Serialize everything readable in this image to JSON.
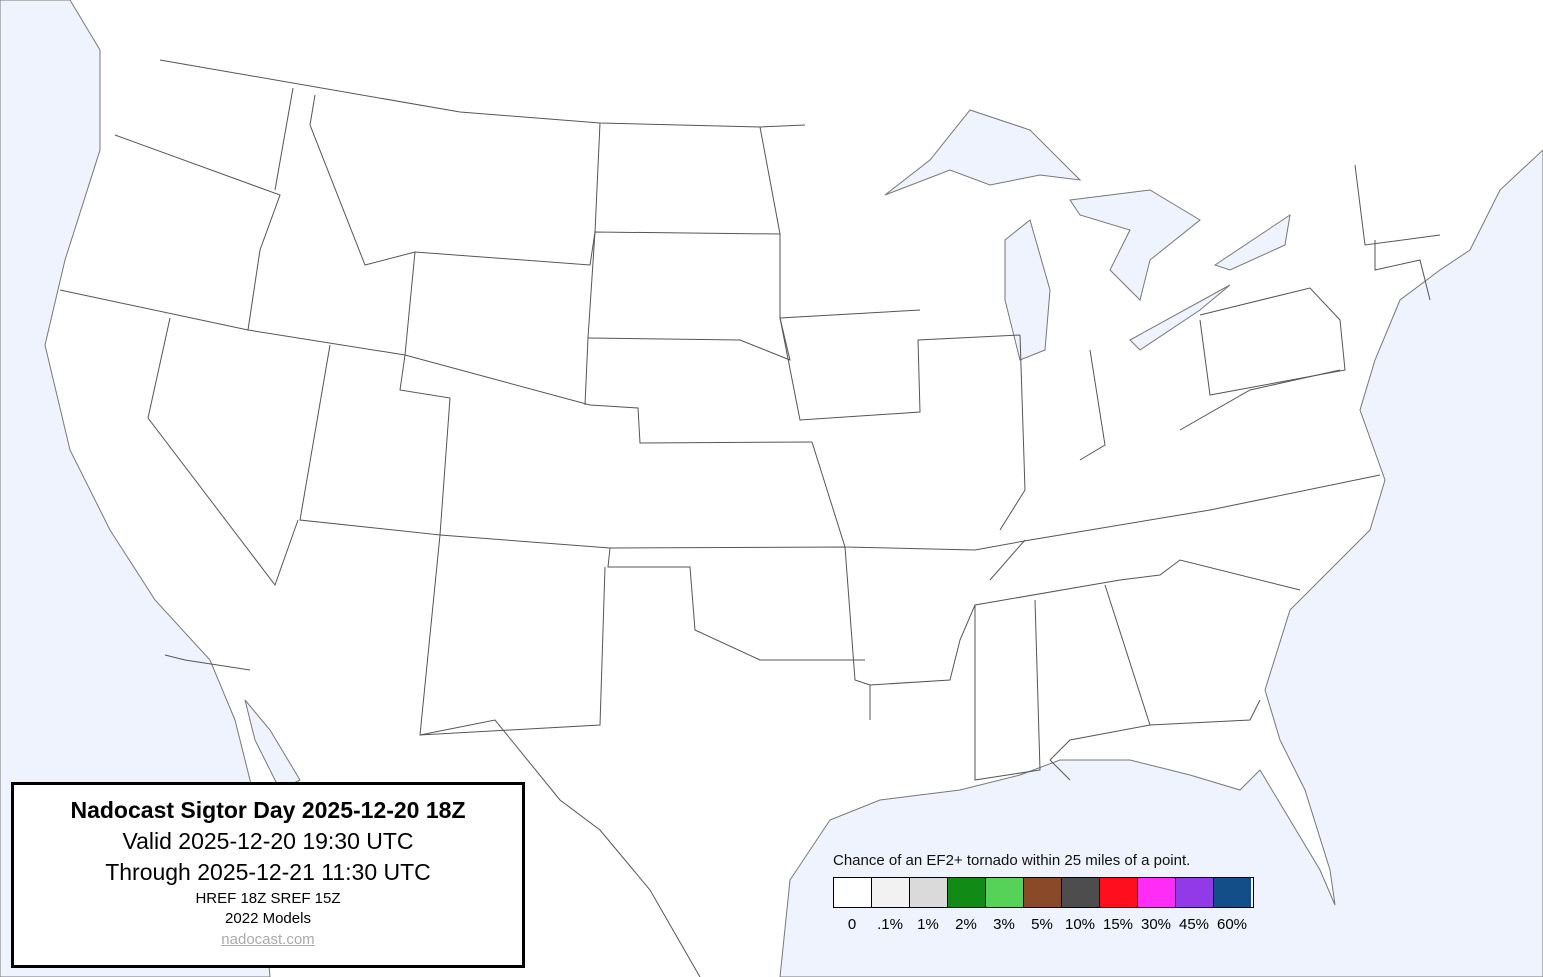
{
  "title_box": {
    "title": "Nadocast Sigtor Day 2025-12-20 18Z",
    "valid": "Valid 2025-12-20 19:30 UTC",
    "through": "Through 2025-12-21 11:30 UTC",
    "models": "HREF 18Z SREF 15Z",
    "model_version": "2022 Models",
    "link": "nadocast.com"
  },
  "legend": {
    "title": "Chance of an EF2+ tornado within 25 miles of a point.",
    "bins": [
      {
        "label": "0",
        "color": "#ffffff"
      },
      {
        "label": ".1%",
        "color": "#f2f2f2"
      },
      {
        "label": "1%",
        "color": "#dadada"
      },
      {
        "label": "2%",
        "color": "#118a16"
      },
      {
        "label": "3%",
        "color": "#55d257"
      },
      {
        "label": "5%",
        "color": "#8a4a2a"
      },
      {
        "label": "10%",
        "color": "#4d4d4d"
      },
      {
        "label": "15%",
        "color": "#ff0e1e"
      },
      {
        "label": "30%",
        "color": "#ff2cf7"
      },
      {
        "label": "45%",
        "color": "#933ae8"
      },
      {
        "label": "60%",
        "color": "#134e88"
      }
    ]
  },
  "map": {
    "water_color": "#eef3fe",
    "land_color": "#ffffff",
    "region": "Continental United States"
  }
}
